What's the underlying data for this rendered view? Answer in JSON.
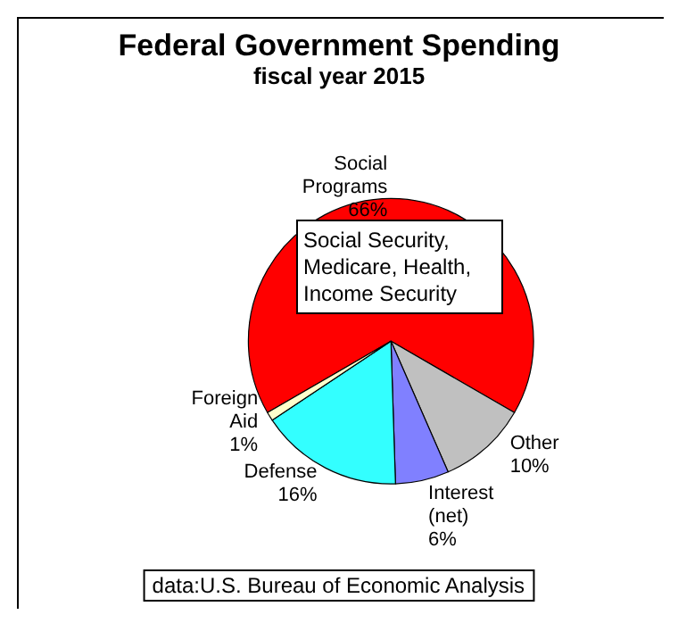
{
  "chart_data": {
    "type": "pie",
    "title": "Federal Government Spending",
    "subtitle": "fiscal year 2015",
    "categories": [
      "Social Programs",
      "Other",
      "Interest (net)",
      "Defense",
      "Foreign Aid"
    ],
    "values": [
      66,
      10,
      6,
      16,
      1
    ],
    "value_labels": [
      "66%",
      "10%",
      "6%",
      "16%",
      "1%"
    ],
    "colors": [
      "#ff0000",
      "#c0c0c0",
      "#8080ff",
      "#33ffff",
      "#ffffcc"
    ],
    "legend": false,
    "annotations": [
      "Social Security, Medicare, Health, Income Security",
      "data:U.S. Bureau of Economic Analysis"
    ]
  }
}
